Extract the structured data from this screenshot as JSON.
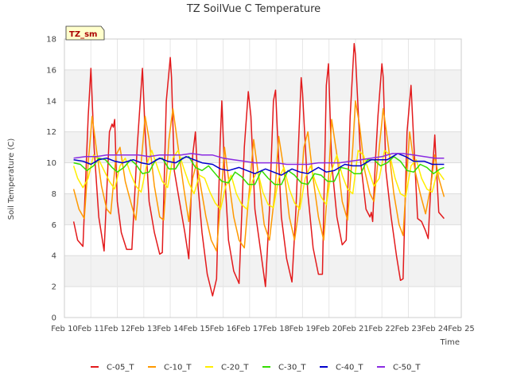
{
  "chart_data": {
    "type": "line",
    "title": "TZ SoilVue C Temperature",
    "xlabel": "Time",
    "ylabel": "Soil Temperature (C)",
    "tag_label": "TZ_sm",
    "ylim": [
      0,
      18
    ],
    "yticks": [
      0,
      2,
      4,
      6,
      8,
      10,
      12,
      14,
      16,
      18
    ],
    "xlim": [
      10,
      25
    ],
    "xtick_values": [
      10,
      11,
      12,
      13,
      14,
      15,
      16,
      17,
      18,
      19,
      20,
      21,
      22,
      23,
      24,
      25
    ],
    "xtick_labels": [
      "Feb 10",
      "Feb 11",
      "Feb 12",
      "Feb 13",
      "Feb 14",
      "Feb 15",
      "Feb 16",
      "Feb 17",
      "Feb 18",
      "Feb 19",
      "Feb 20",
      "Feb 21",
      "Feb 22",
      "Feb 23",
      "Feb 24",
      "Feb 25"
    ],
    "x_note": "x values are days of February (fractional)",
    "legend_position": "bottom-center",
    "series": [
      {
        "name": "C-05_T",
        "color": "#e31a1c",
        "x": [
          10.35,
          10.5,
          10.7,
          10.9,
          11.0,
          11.12,
          11.3,
          11.5,
          11.7,
          11.8,
          11.85,
          11.9,
          11.95,
          12.0,
          12.15,
          12.35,
          12.55,
          12.75,
          12.95,
          13.05,
          13.2,
          13.4,
          13.6,
          13.7,
          13.85,
          14.0,
          14.05,
          14.15,
          14.35,
          14.55,
          14.7,
          14.85,
          14.95,
          15.05,
          15.2,
          15.4,
          15.6,
          15.75,
          15.88,
          15.95,
          16.05,
          16.2,
          16.4,
          16.6,
          16.8,
          16.95,
          17.05,
          17.2,
          17.4,
          17.6,
          17.75,
          17.9,
          17.98,
          18.05,
          18.2,
          18.4,
          18.6,
          18.75,
          18.95,
          19.0,
          19.2,
          19.4,
          19.6,
          19.75,
          19.9,
          19.98,
          20.1,
          20.3,
          20.5,
          20.65,
          20.8,
          20.95,
          21.0,
          21.2,
          21.4,
          21.55,
          21.6,
          21.65,
          21.75,
          21.85,
          22.0,
          22.05,
          22.15,
          22.35,
          22.55,
          22.7,
          22.8,
          22.95,
          23.1,
          23.2,
          23.35,
          23.5,
          23.65,
          23.75,
          23.85,
          23.95,
          24.0,
          24.05,
          24.15,
          24.35
        ],
        "values": [
          6.2,
          5.0,
          4.6,
          13.0,
          16.1,
          11.0,
          6.5,
          4.3,
          12.0,
          12.5,
          12.3,
          12.8,
          10.0,
          7.5,
          5.5,
          4.4,
          4.4,
          11.0,
          16.1,
          12.0,
          7.5,
          5.5,
          4.1,
          4.2,
          14.0,
          16.8,
          15.5,
          9.5,
          7.5,
          5.5,
          3.8,
          10.5,
          12.0,
          8.5,
          5.5,
          2.8,
          1.4,
          2.5,
          11.0,
          14.0,
          9.5,
          5.0,
          3.0,
          2.2,
          11.0,
          14.6,
          13.0,
          7.0,
          4.5,
          2.0,
          7.0,
          14.0,
          14.7,
          12.0,
          6.5,
          3.8,
          2.3,
          7.0,
          15.5,
          14.5,
          8.0,
          4.5,
          2.8,
          2.8,
          15.0,
          16.4,
          10.0,
          6.5,
          4.7,
          5.0,
          13.0,
          17.7,
          17.0,
          10.0,
          7.0,
          6.5,
          6.8,
          6.2,
          10.0,
          13.0,
          16.4,
          15.5,
          9.5,
          6.5,
          4.0,
          2.4,
          2.5,
          12.0,
          15.0,
          11.5,
          6.4,
          6.2,
          5.6,
          5.1,
          8.5,
          10.5,
          11.8,
          10.0,
          6.8,
          6.4
        ]
      },
      {
        "name": "C-10_T",
        "color": "#ff9900",
        "x": [
          10.35,
          10.55,
          10.75,
          10.9,
          11.05,
          11.2,
          11.4,
          11.6,
          11.75,
          11.95,
          12.1,
          12.3,
          12.5,
          12.7,
          12.9,
          13.05,
          13.2,
          13.4,
          13.6,
          13.75,
          13.95,
          14.1,
          14.3,
          14.5,
          14.7,
          14.85,
          15.0,
          15.15,
          15.35,
          15.55,
          15.75,
          15.95,
          16.05,
          16.2,
          16.4,
          16.6,
          16.8,
          17.0,
          17.15,
          17.35,
          17.55,
          17.75,
          17.95,
          18.1,
          18.3,
          18.5,
          18.7,
          18.9,
          19.05,
          19.2,
          19.4,
          19.6,
          19.8,
          20.0,
          20.1,
          20.3,
          20.5,
          20.7,
          20.9,
          21.0,
          21.15,
          21.35,
          21.55,
          21.7,
          21.9,
          22.05,
          22.25,
          22.45,
          22.65,
          22.8,
          22.95,
          23.05,
          23.25,
          23.45,
          23.65,
          23.85,
          24.0,
          24.15,
          24.35
        ],
        "values": [
          8.3,
          7.0,
          6.4,
          10.0,
          13.0,
          11.0,
          8.5,
          7.0,
          6.7,
          10.5,
          11.0,
          8.8,
          7.5,
          6.3,
          10.0,
          13.0,
          11.5,
          8.5,
          6.5,
          6.3,
          11.5,
          13.5,
          11.0,
          8.5,
          6.2,
          9.0,
          10.0,
          8.5,
          6.5,
          5.0,
          4.3,
          8.5,
          11.0,
          9.0,
          6.5,
          5.0,
          4.5,
          8.5,
          11.5,
          9.0,
          6.0,
          5.0,
          8.0,
          11.7,
          9.5,
          6.5,
          5.0,
          7.5,
          11.0,
          12.0,
          9.0,
          6.5,
          5.0,
          9.5,
          12.8,
          10.5,
          7.5,
          6.3,
          11.0,
          14.0,
          12.5,
          9.5,
          8.0,
          7.5,
          11.0,
          13.5,
          11.0,
          8.0,
          6.0,
          5.3,
          9.5,
          12.0,
          9.5,
          8.0,
          6.7,
          8.5,
          10.5,
          9.0,
          7.8
        ]
      },
      {
        "name": "C-20_T",
        "color": "#ffee00",
        "x": [
          10.35,
          10.5,
          10.7,
          10.9,
          11.1,
          11.3,
          11.5,
          11.7,
          11.9,
          12.1,
          12.3,
          12.5,
          12.7,
          12.9,
          13.1,
          13.3,
          13.5,
          13.7,
          13.9,
          14.1,
          14.3,
          14.5,
          14.7,
          14.9,
          15.1,
          15.3,
          15.5,
          15.7,
          15.9,
          16.1,
          16.3,
          16.5,
          16.7,
          16.9,
          17.1,
          17.3,
          17.5,
          17.7,
          17.9,
          18.1,
          18.3,
          18.5,
          18.7,
          18.9,
          19.1,
          19.3,
          19.5,
          19.7,
          19.9,
          20.1,
          20.3,
          20.5,
          20.7,
          20.9,
          21.1,
          21.3,
          21.5,
          21.7,
          21.9,
          22.1,
          22.3,
          22.5,
          22.7,
          22.9,
          23.1,
          23.3,
          23.5,
          23.7,
          23.9,
          24.1,
          24.35
        ],
        "values": [
          9.8,
          9.0,
          8.4,
          9.0,
          10.5,
          10.2,
          9.5,
          8.8,
          8.3,
          9.8,
          10.3,
          9.3,
          8.5,
          8.1,
          9.8,
          10.8,
          9.8,
          8.8,
          8.4,
          10.3,
          10.8,
          9.7,
          8.7,
          8.0,
          9.2,
          9.0,
          8.1,
          7.4,
          7.0,
          8.5,
          9.2,
          8.0,
          7.3,
          7.0,
          8.8,
          9.5,
          8.1,
          7.3,
          7.1,
          9.0,
          9.7,
          8.3,
          7.4,
          7.0,
          9.0,
          9.8,
          8.7,
          7.8,
          7.3,
          9.5,
          10.5,
          9.2,
          8.3,
          8.0,
          10.8,
          10.5,
          9.5,
          8.5,
          9.0,
          10.8,
          10.5,
          9.0,
          8.0,
          7.8,
          9.8,
          10.2,
          9.0,
          8.3,
          8.1,
          9.5,
          8.9
        ]
      },
      {
        "name": "C-30_T",
        "color": "#33dd00",
        "x": [
          10.35,
          10.6,
          10.85,
          11.1,
          11.3,
          11.55,
          11.8,
          12.0,
          12.25,
          12.5,
          12.7,
          12.95,
          13.2,
          13.45,
          13.7,
          13.95,
          14.2,
          14.45,
          14.7,
          14.95,
          15.2,
          15.45,
          15.7,
          15.95,
          16.2,
          16.45,
          16.7,
          16.95,
          17.2,
          17.45,
          17.7,
          17.95,
          18.2,
          18.45,
          18.7,
          18.95,
          19.2,
          19.45,
          19.7,
          19.95,
          20.2,
          20.45,
          20.7,
          20.95,
          21.2,
          21.45,
          21.7,
          21.95,
          22.2,
          22.45,
          22.7,
          22.95,
          23.2,
          23.45,
          23.7,
          23.95,
          24.2,
          24.35
        ],
        "values": [
          10.0,
          9.9,
          9.5,
          9.8,
          10.3,
          10.2,
          9.7,
          9.4,
          9.7,
          10.2,
          9.9,
          9.3,
          9.4,
          10.2,
          10.3,
          9.6,
          9.6,
          10.3,
          10.4,
          9.7,
          9.5,
          9.8,
          9.3,
          8.8,
          8.7,
          9.4,
          9.1,
          8.6,
          8.6,
          9.5,
          9.0,
          8.6,
          8.6,
          9.5,
          9.2,
          8.7,
          8.6,
          9.3,
          9.2,
          8.8,
          8.8,
          9.7,
          9.6,
          9.3,
          9.3,
          10.2,
          10.2,
          9.8,
          10.0,
          10.4,
          10.1,
          9.5,
          9.4,
          9.9,
          9.7,
          9.3,
          9.6,
          9.7
        ]
      },
      {
        "name": "C-40_T",
        "color": "#0000cc",
        "x": [
          10.35,
          10.7,
          11.0,
          11.3,
          11.6,
          11.9,
          12.2,
          12.6,
          12.9,
          13.2,
          13.6,
          13.9,
          14.2,
          14.6,
          14.9,
          15.2,
          15.6,
          15.9,
          16.2,
          16.6,
          16.9,
          17.2,
          17.6,
          17.9,
          18.2,
          18.6,
          18.9,
          19.2,
          19.6,
          19.9,
          20.2,
          20.6,
          20.9,
          21.2,
          21.6,
          21.9,
          22.2,
          22.6,
          22.9,
          23.2,
          23.6,
          23.9,
          24.2,
          24.35
        ],
        "values": [
          10.2,
          10.1,
          9.9,
          10.2,
          10.3,
          10.1,
          10.0,
          10.2,
          10.0,
          9.9,
          10.3,
          10.1,
          10.0,
          10.4,
          10.2,
          10.0,
          9.9,
          9.6,
          9.5,
          9.7,
          9.5,
          9.3,
          9.6,
          9.4,
          9.2,
          9.6,
          9.4,
          9.3,
          9.7,
          9.4,
          9.5,
          9.9,
          9.8,
          9.8,
          10.2,
          10.2,
          10.2,
          10.6,
          10.4,
          10.1,
          10.1,
          9.9,
          9.9,
          9.9
        ]
      },
      {
        "name": "C-50_T",
        "color": "#8a2be2",
        "x": [
          10.35,
          10.8,
          11.2,
          11.6,
          12.0,
          12.4,
          12.8,
          13.2,
          13.6,
          14.0,
          14.4,
          14.8,
          15.2,
          15.6,
          16.0,
          16.4,
          16.8,
          17.2,
          17.6,
          18.0,
          18.4,
          18.8,
          19.2,
          19.6,
          20.0,
          20.4,
          20.8,
          21.2,
          21.6,
          22.0,
          22.4,
          22.8,
          23.2,
          23.6,
          24.0,
          24.35
        ],
        "values": [
          10.3,
          10.4,
          10.4,
          10.5,
          10.5,
          10.5,
          10.5,
          10.4,
          10.5,
          10.5,
          10.5,
          10.6,
          10.5,
          10.5,
          10.3,
          10.2,
          10.1,
          10.0,
          10.0,
          10.0,
          9.9,
          9.9,
          9.9,
          10.0,
          10.0,
          10.0,
          10.1,
          10.2,
          10.3,
          10.4,
          10.6,
          10.6,
          10.5,
          10.4,
          10.3,
          10.3
        ]
      }
    ]
  }
}
